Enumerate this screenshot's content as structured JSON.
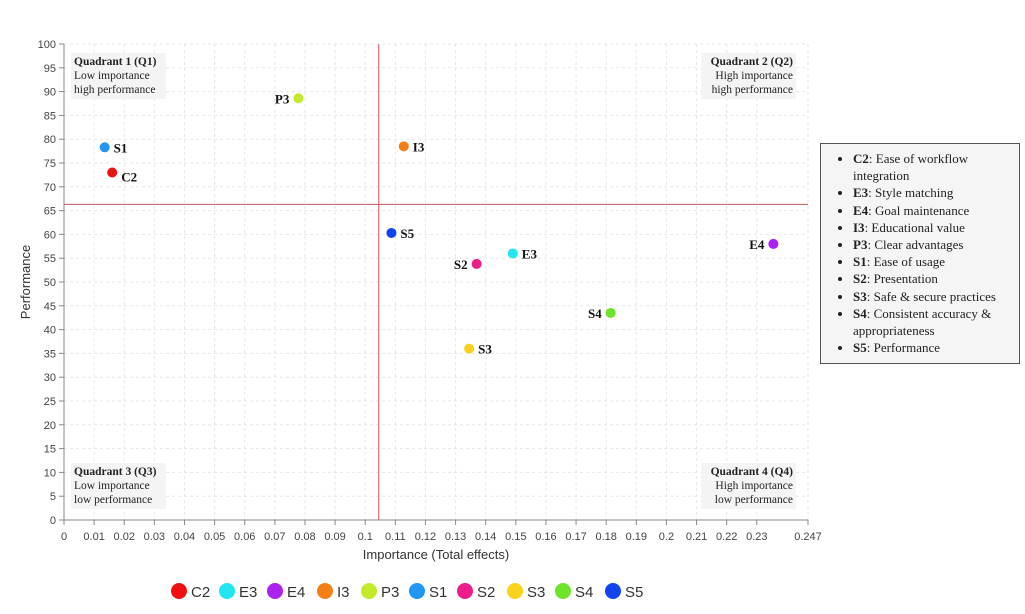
{
  "chart_data": {
    "type": "scatter",
    "xlabel": "Importance (Total effects)",
    "ylabel": "Performance",
    "xlim": [
      0,
      0.247
    ],
    "ylim": [
      0,
      100
    ],
    "x_ticks": [
      "0",
      "0.01",
      "0.02",
      "0.03",
      "0.04",
      "0.05",
      "0.06",
      "0.07",
      "0.08",
      "0.09",
      "0.1",
      "0.11",
      "0.12",
      "0.13",
      "0.14",
      "0.15",
      "0.16",
      "0.17",
      "0.18",
      "0.19",
      "0.2",
      "0.21",
      "0.22",
      "0.23",
      "0.247"
    ],
    "y_ticks": [
      "0",
      "5",
      "10",
      "15",
      "20",
      "25",
      "30",
      "35",
      "40",
      "45",
      "50",
      "55",
      "60",
      "65",
      "70",
      "75",
      "80",
      "85",
      "90",
      "95",
      "100"
    ],
    "grid": true,
    "reference_lines": {
      "importance": 0.1045,
      "performance": 66.3
    },
    "series": [
      {
        "name": "C2",
        "x": 0.016,
        "y": 73.0,
        "color": "#ee1111",
        "label_side": "right-below"
      },
      {
        "name": "E3",
        "x": 0.149,
        "y": 56.0,
        "color": "#22e5f0",
        "label_side": "right"
      },
      {
        "name": "E4",
        "x": 0.2355,
        "y": 58.0,
        "color": "#aa22ee",
        "label_side": "left"
      },
      {
        "name": "I3",
        "x": 0.1128,
        "y": 78.5,
        "color": "#f47f14",
        "label_side": "right"
      },
      {
        "name": "P3",
        "x": 0.0778,
        "y": 88.6,
        "color": "#c3ea2a",
        "label_side": "left"
      },
      {
        "name": "S1",
        "x": 0.0135,
        "y": 78.3,
        "color": "#2196f3",
        "label_side": "right"
      },
      {
        "name": "S2",
        "x": 0.137,
        "y": 53.8,
        "color": "#ee1c8a",
        "label_side": "left"
      },
      {
        "name": "S3",
        "x": 0.1345,
        "y": 36.0,
        "color": "#f9d21c",
        "label_side": "right"
      },
      {
        "name": "S4",
        "x": 0.1815,
        "y": 43.5,
        "color": "#6ee32c",
        "label_side": "left"
      },
      {
        "name": "S5",
        "x": 0.1087,
        "y": 60.3,
        "color": "#1144ee",
        "label_side": "right"
      }
    ],
    "quadrants": [
      {
        "title": "Quadrant 1 (Q1)",
        "line1": "Low importance",
        "line2": "high performance",
        "position": "top-left"
      },
      {
        "title": "Quadrant 2 (Q2)",
        "line1": "High importance",
        "line2": "high performance",
        "position": "top-right"
      },
      {
        "title": "Quadrant 3 (Q3)",
        "line1": "Low importance",
        "line2": "low performance",
        "position": "bottom-left"
      },
      {
        "title": "Quadrant 4 (Q4)",
        "line1": "High importance",
        "line2": "low performance",
        "position": "bottom-right"
      }
    ],
    "legend": {
      "position": "bottom",
      "entries": [
        "C2",
        "E3",
        "E4",
        "I3",
        "P3",
        "S1",
        "S2",
        "S3",
        "S4",
        "S5"
      ]
    },
    "note": [
      {
        "code": "C2",
        "text": ": Ease of workflow integration"
      },
      {
        "code": "E3",
        "text": ": Style matching"
      },
      {
        "code": "E4",
        "text": ": Goal maintenance"
      },
      {
        "code": "I3",
        "text": ": Educational value"
      },
      {
        "code": "P3",
        "text": ": Clear advantages"
      },
      {
        "code": "S1",
        "text": ": Ease of usage"
      },
      {
        "code": "S2",
        "text": ": Presentation"
      },
      {
        "code": "S3",
        "text": ": Safe & secure practices"
      },
      {
        "code": "S4",
        "text": ": Consistent accuracy & appropriateness"
      },
      {
        "code": "S5",
        "text": ": Performance"
      }
    ]
  }
}
